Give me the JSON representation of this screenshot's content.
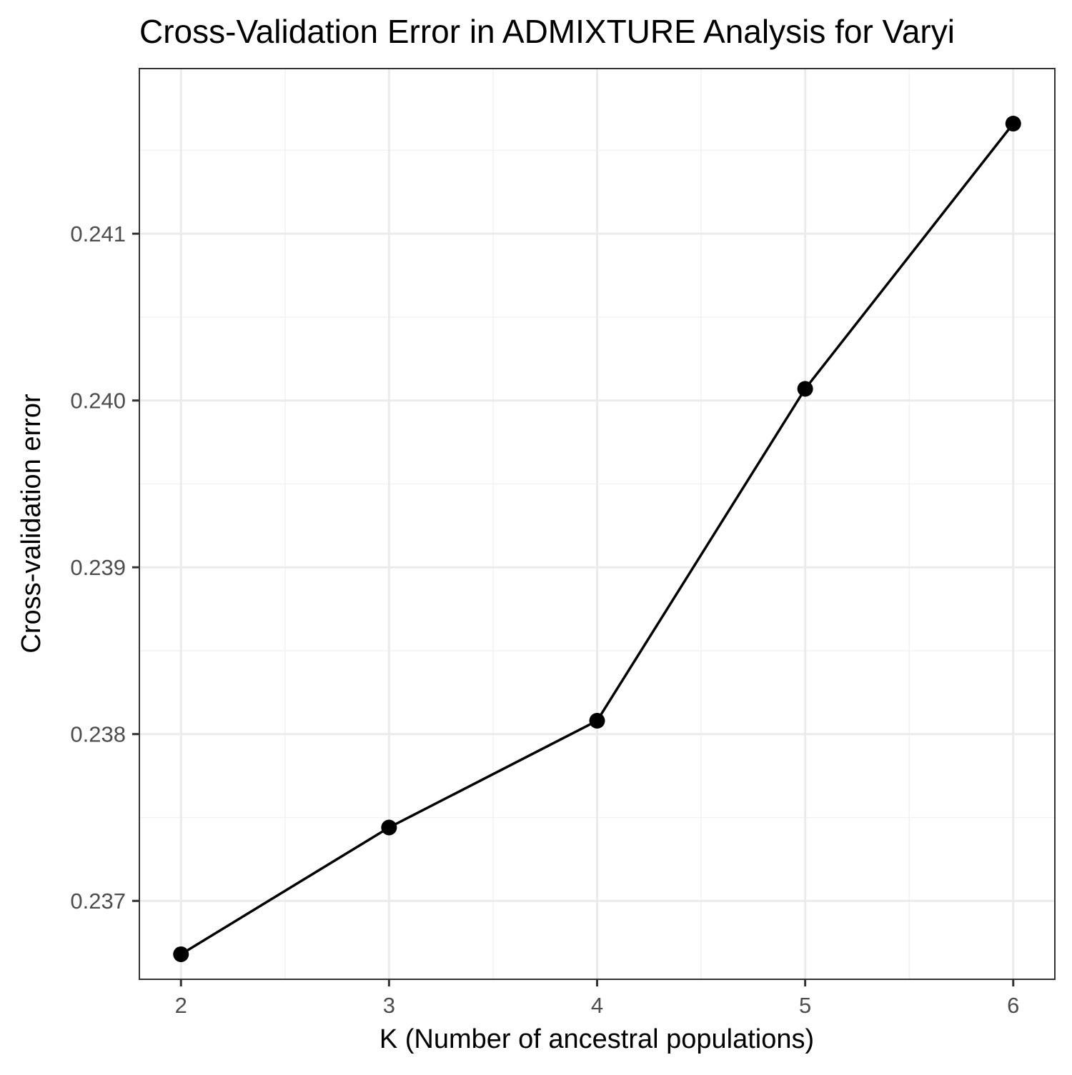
{
  "chart_data": {
    "type": "line",
    "title": "Cross-Validation Error in ADMIXTURE Analysis for Varyi",
    "xlabel": "K (Number of ancestral populations)",
    "ylabel": "Cross-validation error",
    "x": [
      2,
      3,
      4,
      5,
      6
    ],
    "series": [
      {
        "values": [
          0.23668,
          0.23744,
          0.23808,
          0.24007,
          0.24166
        ]
      }
    ],
    "xlim": [
      1.8,
      6.2
    ],
    "ylim": [
      0.23653,
      0.24199
    ],
    "x_ticks": [
      2,
      3,
      4,
      5,
      6
    ],
    "x_tick_labels": [
      "2",
      "3",
      "4",
      "5",
      "6"
    ],
    "y_ticks": [
      0.237,
      0.238,
      0.239,
      0.24,
      0.241
    ],
    "y_tick_labels": [
      "0.237",
      "0.238",
      "0.239",
      "0.240",
      "0.241"
    ],
    "grid": true,
    "legend": "none",
    "line_color": "#000000",
    "point_color": "#000000"
  }
}
